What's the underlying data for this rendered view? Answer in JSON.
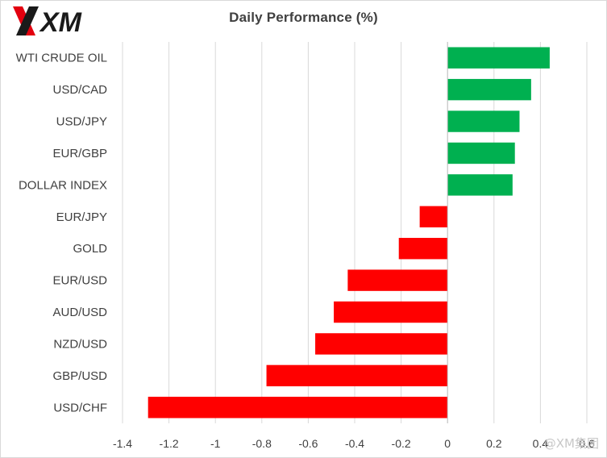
{
  "brand": {
    "logo_text": "XM"
  },
  "watermark": {
    "text": "@XM集团"
  },
  "chart_data": {
    "type": "bar",
    "orientation": "horizontal",
    "title": "Daily Performance  (%)",
    "categories": [
      "WTI CRUDE OIL",
      "USD/CAD",
      "USD/JPY",
      "EUR/GBP",
      "DOLLAR INDEX",
      "EUR/JPY",
      "GOLD",
      "EUR/USD",
      "AUD/USD",
      "NZD/USD",
      "GBP/USD",
      "USD/CHF"
    ],
    "values": [
      0.44,
      0.36,
      0.31,
      0.29,
      0.28,
      -0.12,
      -0.21,
      -0.43,
      -0.49,
      -0.57,
      -0.78,
      -1.29
    ],
    "xlim": [
      -1.4,
      0.6
    ],
    "xticks": [
      -1.4,
      -1.2,
      -1,
      -0.8,
      -0.6,
      -0.4,
      -0.2,
      0,
      0.2,
      0.4,
      0.6
    ],
    "xtick_labels": [
      "-1.4",
      "-1.2",
      "-1",
      "-0.8",
      "-0.6",
      "-0.4",
      "-0.2",
      "0",
      "0.2",
      "0.4",
      "0.6"
    ],
    "xlabel": "",
    "ylabel": "",
    "grid": true,
    "legend": "none",
    "colors": {
      "positive": "#00b050",
      "negative": "#ff0000",
      "grid": "#d9d9d9",
      "text": "#404040"
    }
  }
}
